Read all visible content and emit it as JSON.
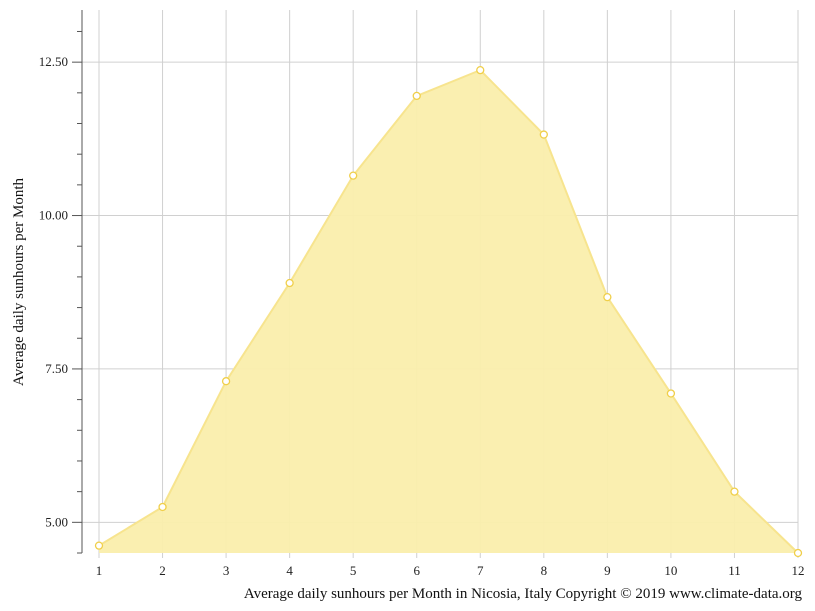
{
  "chart_data": {
    "type": "area",
    "title": "",
    "xlabel": "Average daily sunhours per Month in Nicosia, Italy Copyright © 2019 www.climate-data.org",
    "ylabel": "Average daily sunhours per Month",
    "x": [
      1,
      2,
      3,
      4,
      5,
      6,
      7,
      8,
      9,
      10,
      11,
      12
    ],
    "x_tick_labels": [
      "1",
      "2",
      "3",
      "4",
      "5",
      "6",
      "7",
      "8",
      "9",
      "10",
      "11",
      "12"
    ],
    "y_ticks": [
      5.0,
      7.5,
      10.0,
      12.5
    ],
    "y_tick_labels": [
      "5.00",
      "7.50",
      "10.00",
      "12.50"
    ],
    "ylim": [
      4.5,
      13.35
    ],
    "xlim": [
      1,
      12
    ],
    "grid": true,
    "series": [
      {
        "values": [
          4.62,
          5.25,
          7.3,
          8.9,
          10.65,
          11.95,
          12.37,
          11.32,
          8.67,
          7.1,
          5.5,
          4.5
        ]
      }
    ],
    "colors": {
      "fill": "#faeeac",
      "line": "#f7e48e",
      "marker_fill": "#ffffff",
      "marker_stroke": "#f0cf4a",
      "grid": "#d0d0d0",
      "axis": "#555555"
    }
  }
}
